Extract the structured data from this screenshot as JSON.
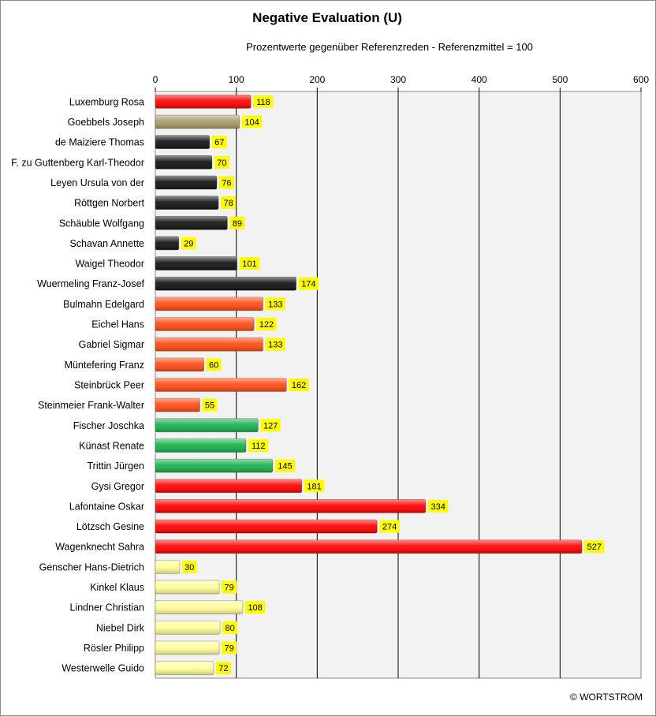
{
  "chart_data": {
    "type": "bar",
    "orientation": "horizontal",
    "title": "Negative Evaluation (U)",
    "subtitle": "Prozentwerte  gegenüber Referenzreden - Referenzmittel = 100",
    "xlim": [
      0,
      600
    ],
    "xticks": [
      0,
      100,
      200,
      300,
      400,
      500,
      600
    ],
    "x_axis_position": "top",
    "grid": true,
    "legend": "none",
    "data_labels": true,
    "data_label_color": "#ffff00",
    "plot_background": "#f2f2f2",
    "categories": [
      "Luxemburg Rosa",
      "Goebbels Joseph",
      "de Maiziere Thomas",
      "F. zu Guttenberg Karl-Theodor",
      "Leyen Ursula von der",
      "Röttgen Norbert",
      "Schäuble Wolfgang",
      "Schavan Annette",
      "Waigel Theodor",
      "Wuermeling Franz-Josef",
      "Bulmahn Edelgard",
      "Eichel Hans",
      "Gabriel Sigmar",
      "Müntefering Franz",
      "Steinbrück Peer",
      "Steinmeier Frank-Walter",
      "Fischer Joschka",
      "Künast Renate",
      "Trittin Jürgen",
      "Gysi Gregor",
      "Lafontaine Oskar",
      "Lötzsch Gesine",
      "Wagenknecht Sahra",
      "Genscher Hans-Dietrich",
      "Kinkel Klaus",
      "Lindner Christian",
      "Niebel Dirk",
      "Rösler Philipp",
      "Westerwelle Guido"
    ],
    "values": [
      118,
      104,
      67,
      70,
      76,
      78,
      89,
      29,
      101,
      174,
      133,
      122,
      133,
      60,
      162,
      55,
      127,
      112,
      145,
      181,
      334,
      274,
      527,
      30,
      79,
      108,
      80,
      79,
      72
    ],
    "bar_colors": [
      "#ff0000",
      "#a89a6a",
      "#111111",
      "#111111",
      "#111111",
      "#111111",
      "#111111",
      "#111111",
      "#111111",
      "#111111",
      "#ff4a12",
      "#ff4a12",
      "#ff4a12",
      "#ff4a12",
      "#ff4a12",
      "#ff4a12",
      "#19b04c",
      "#19b04c",
      "#19b04c",
      "#ff0000",
      "#ff0000",
      "#ff0000",
      "#ff0000",
      "#ffff99",
      "#ffff99",
      "#ffff99",
      "#ffff99",
      "#ffff99",
      "#ffff99"
    ]
  },
  "footer": {
    "copyright": "© WORTSTROM"
  }
}
